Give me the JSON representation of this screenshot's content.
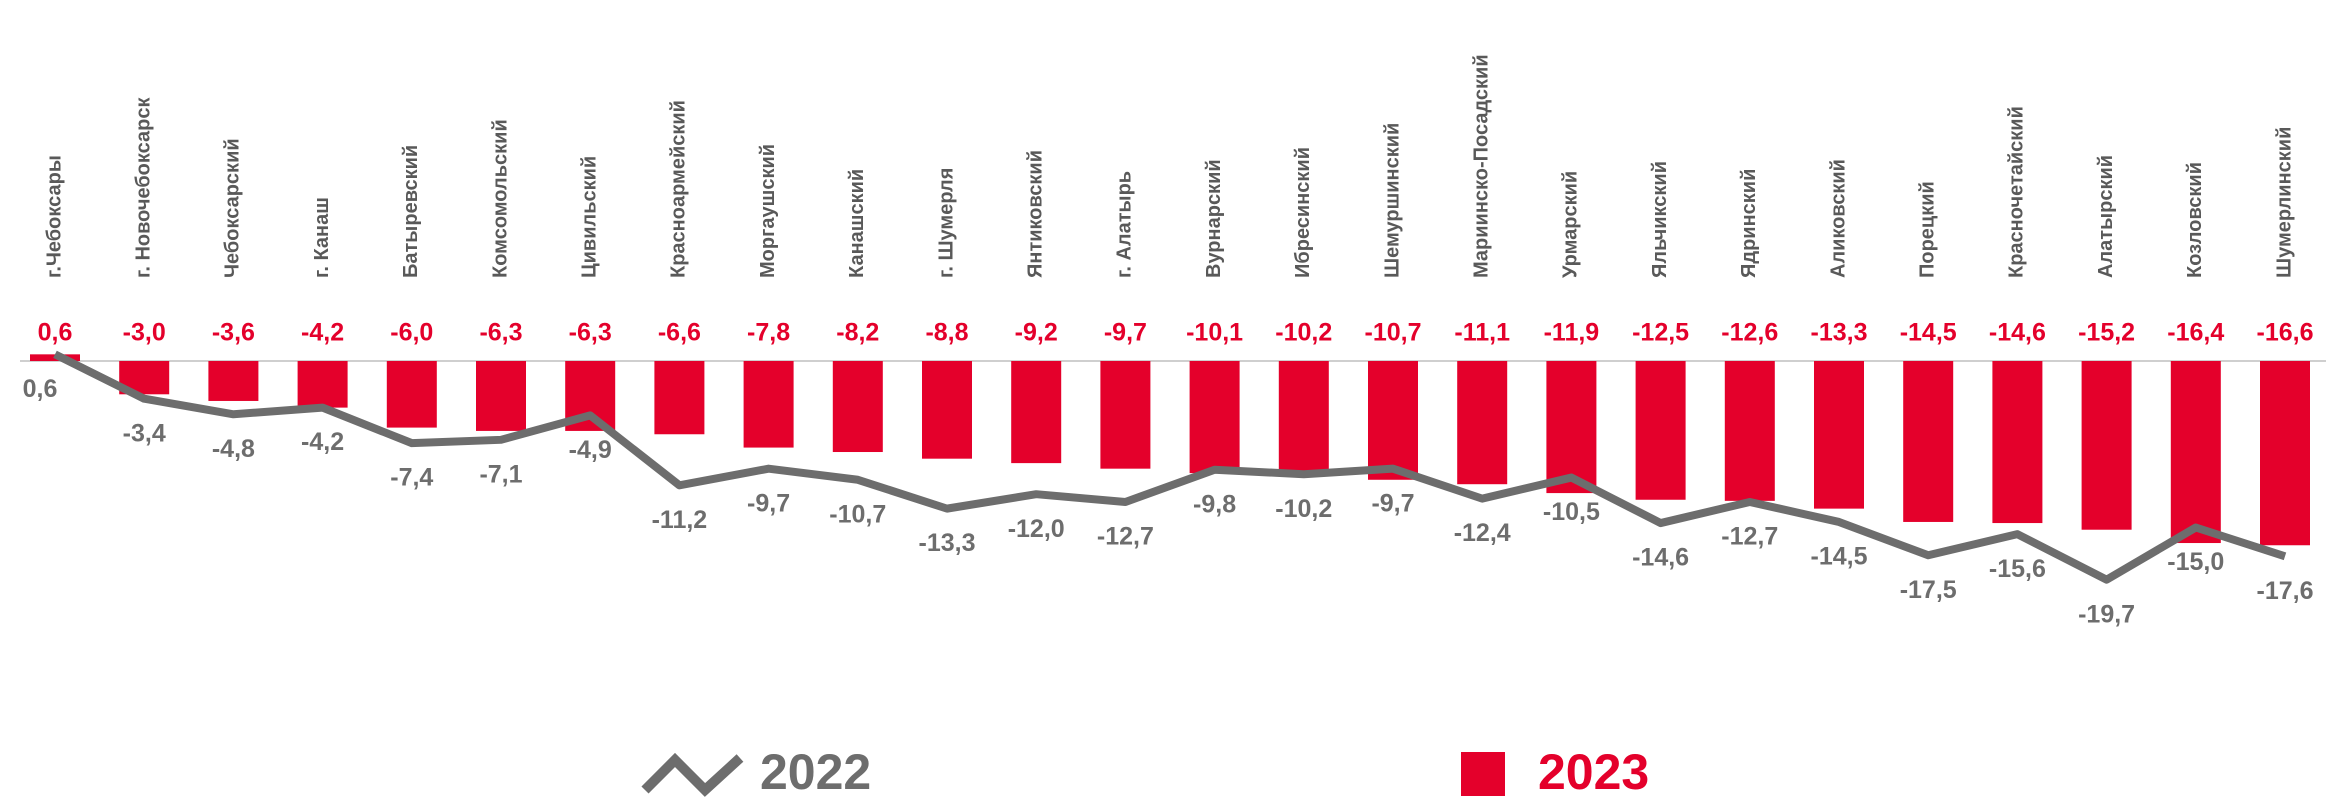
{
  "chart_data": {
    "type": "bar-line",
    "categories": [
      "г.Чебоксары",
      "г. Новочебоксарск",
      "Чебоксарский",
      "г. Канаш",
      "Батыревский",
      "Комсомольский",
      "Цивильский",
      "Красноармейский",
      "Моргаушский",
      "Канашский",
      "г. Шумерля",
      "Янтиковский",
      "г. Алатырь",
      "Вурнарский",
      "Ибресинский",
      "Шемуршинский",
      "Мариинско-Посадский",
      "Урмарский",
      "Яльчикский",
      "Ядринский",
      "Аликовский",
      "Порецкий",
      "Красночетайский",
      "Алатырский",
      "Козловский",
      "Шумерлинский"
    ],
    "series": [
      {
        "name": "2022",
        "type": "line",
        "color": "#6d6d6d",
        "values": [
          0.6,
          -3.4,
          -4.8,
          -4.2,
          -7.4,
          -7.1,
          -4.9,
          -11.2,
          -9.7,
          -10.7,
          -13.3,
          -12.0,
          -12.7,
          -9.8,
          -10.2,
          -9.7,
          -12.4,
          -10.5,
          -14.6,
          -12.7,
          -14.5,
          -17.5,
          -15.6,
          -19.7,
          -15.0,
          -17.6
        ],
        "value_labels": [
          "0,6",
          "-3,4",
          "-4,8",
          "-4,2",
          "-7,4",
          "-7,1",
          "-4,9",
          "-11,2",
          "-9,7",
          "-10,7",
          "-13,3",
          "-12,0",
          "-12,7",
          "-9,8",
          "-10,2",
          "-9,7",
          "-12,4",
          "-10,5",
          "-14,6",
          "-12,7",
          "-14,5",
          "-17,5",
          "-15,6",
          "-19,7",
          "-15,0",
          "-17,6"
        ]
      },
      {
        "name": "2023",
        "type": "bar",
        "color": "#e4002b",
        "values": [
          0.6,
          -3.0,
          -3.6,
          -4.2,
          -6.0,
          -6.3,
          -6.3,
          -6.6,
          -7.8,
          -8.2,
          -8.8,
          -9.2,
          -9.7,
          -10.1,
          -10.2,
          -10.7,
          -11.1,
          -11.9,
          -12.5,
          -12.6,
          -13.3,
          -14.5,
          -14.6,
          -15.2,
          -16.4,
          -16.6
        ],
        "value_labels": [
          "0,6",
          "-3,0",
          "-3,6",
          "-4,2",
          "-6,0",
          "-6,3",
          "-6,3",
          "-6,6",
          "-7,8",
          "-8,2",
          "-8,8",
          "-9,2",
          "-9,7",
          "-10,1",
          "-10,2",
          "-10,7",
          "-11,1",
          "-11,9",
          "-12,5",
          "-12,6",
          "-13,3",
          "-14,5",
          "-14,6",
          "-15,2",
          "-16,4",
          "-16,6"
        ]
      }
    ]
  }
}
